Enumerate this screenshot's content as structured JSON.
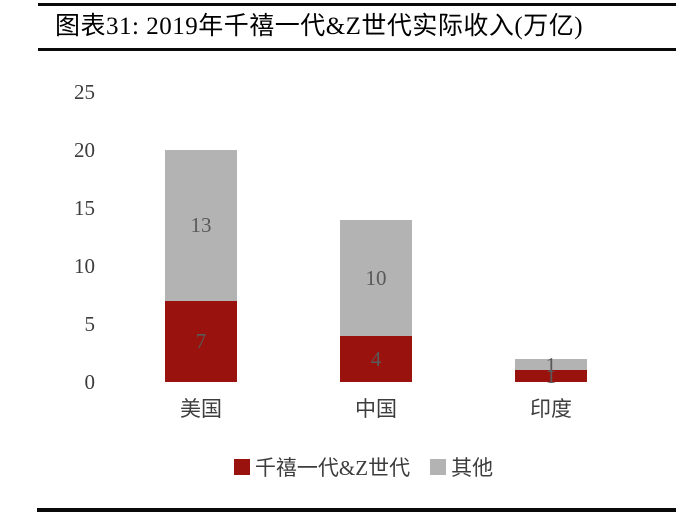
{
  "figure": {
    "title": "图表31: 2019年千禧一代&Z世代实际收入(万亿)"
  },
  "chart_data": {
    "type": "bar",
    "stacked": true,
    "title": "2019年千禧一代&Z世代实际收入(万亿)",
    "categories": [
      "美国",
      "中国",
      "印度"
    ],
    "series": [
      {
        "name": "千禧一代&Z世代",
        "color": "#9A120D",
        "values": [
          7,
          4,
          1
        ]
      },
      {
        "name": "其他",
        "color": "#B3B3B3",
        "values": [
          13,
          10,
          1
        ]
      }
    ],
    "totals": [
      20,
      14,
      2
    ],
    "yticks": [
      0,
      5,
      10,
      15,
      20,
      25
    ],
    "ylim": [
      0,
      25
    ],
    "xlabel": "",
    "ylabel": "",
    "grid": false,
    "value_labels": true,
    "legend_position": "bottom"
  },
  "colors": {
    "series_millennials_genz": "#9A120D",
    "series_other": "#B3B3B3",
    "axis_text": "#3d3d3d",
    "value_label_text": "#595959",
    "rule": "#0a0a0a",
    "background": "#ffffff"
  }
}
